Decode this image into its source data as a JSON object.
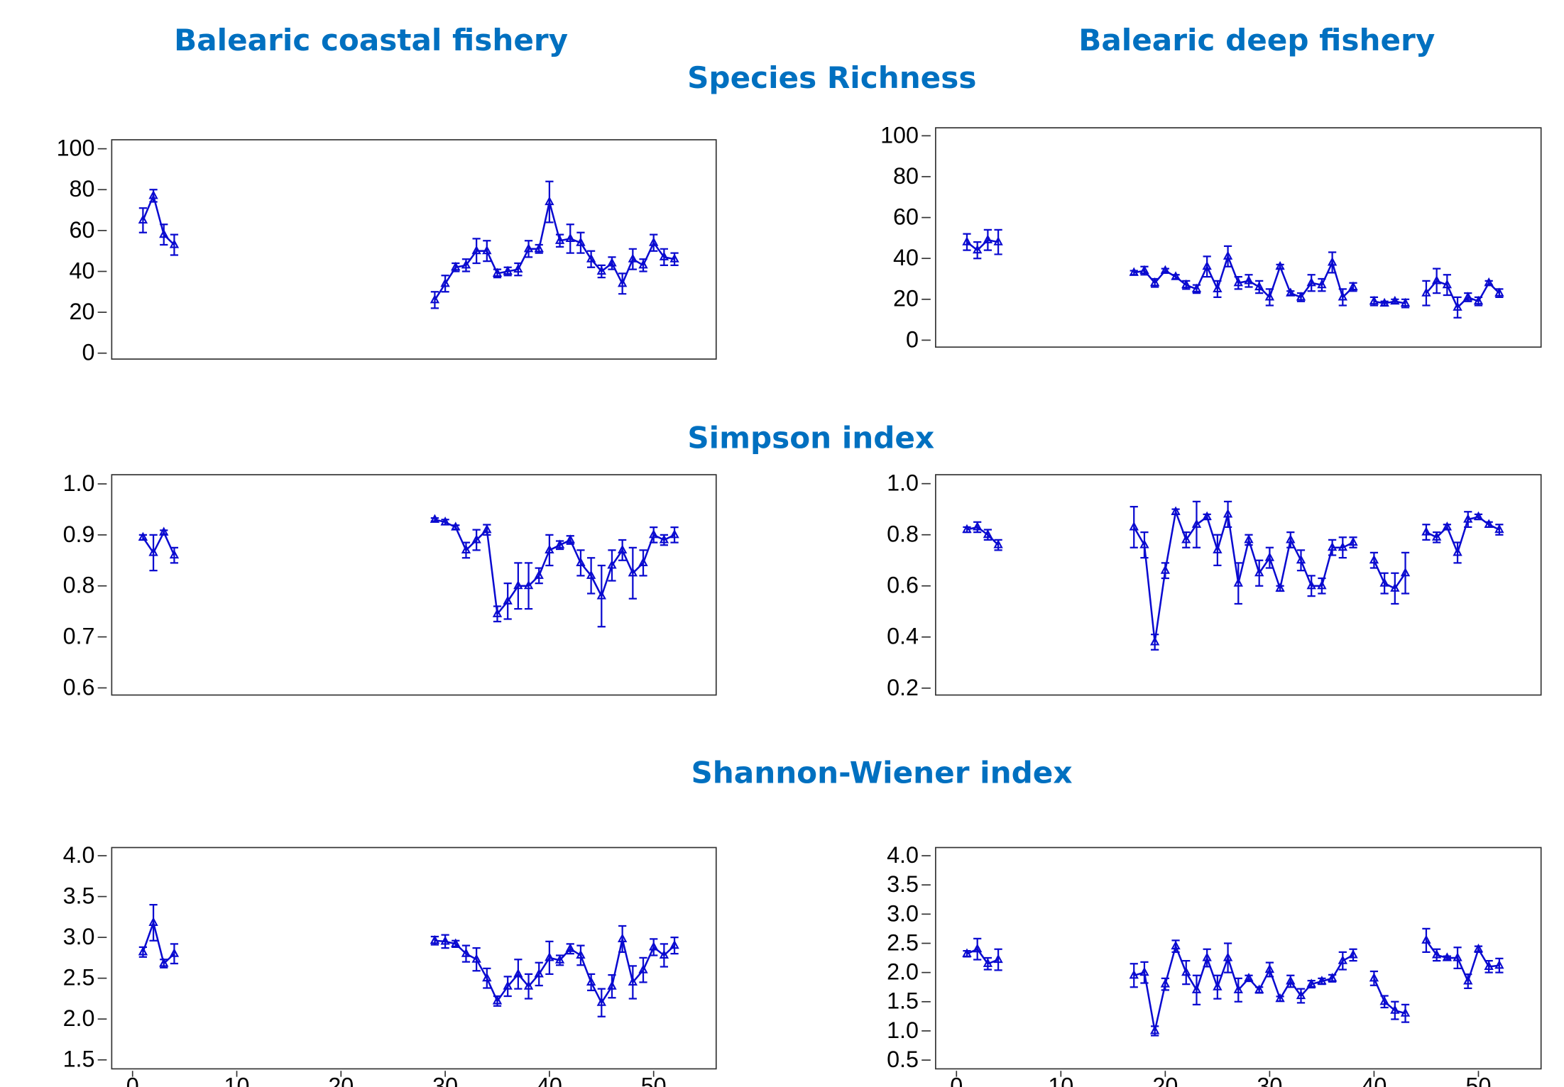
{
  "column_titles": [
    "Balearic coastal fishery",
    "Balearic deep fishery"
  ],
  "row_titles": [
    "Species Richness",
    "Simpson index",
    "Shannon-Wiener index"
  ],
  "chart_data": [
    {
      "type": "line",
      "x": [
        1,
        2,
        3,
        4,
        5,
        6,
        7,
        8,
        9,
        10,
        11,
        12,
        13,
        14,
        15,
        16,
        17,
        18,
        19,
        20,
        21,
        22,
        23,
        24,
        25,
        26,
        27,
        28,
        29,
        30,
        31,
        32,
        33,
        34,
        35,
        36,
        37,
        38,
        39,
        40,
        41,
        42,
        43,
        44,
        45,
        46,
        47,
        48,
        49,
        50,
        51,
        52
      ],
      "series": [
        {
          "color": "#0a0ad0",
          "values": [
            65,
            77,
            58,
            53,
            null,
            null,
            null,
            null,
            null,
            null,
            null,
            null,
            null,
            null,
            null,
            null,
            null,
            null,
            null,
            null,
            null,
            null,
            null,
            null,
            null,
            null,
            null,
            null,
            26,
            34,
            42,
            43,
            50,
            50,
            39,
            40,
            41,
            51,
            51,
            74,
            55,
            56,
            54,
            46,
            40,
            44,
            34,
            46,
            43,
            54,
            47,
            46
          ],
          "errors": [
            6,
            3,
            5,
            5,
            null,
            null,
            null,
            null,
            null,
            null,
            null,
            null,
            null,
            null,
            null,
            null,
            null,
            null,
            null,
            null,
            null,
            null,
            null,
            null,
            null,
            null,
            null,
            null,
            4,
            4,
            2,
            3,
            6,
            5,
            2,
            2,
            3,
            4,
            2,
            10,
            3,
            7,
            5,
            4,
            3,
            3,
            5,
            5,
            3,
            4,
            4,
            3
          ]
        }
      ],
      "xlim": [
        -2,
        56
      ],
      "ylim": [
        -2.9,
        104.4
      ],
      "yticks": [
        0,
        20,
        40,
        60,
        80,
        100
      ]
    },
    {
      "type": "line",
      "x": [
        1,
        2,
        3,
        4,
        5,
        6,
        7,
        8,
        9,
        10,
        11,
        12,
        13,
        14,
        15,
        16,
        17,
        18,
        19,
        20,
        21,
        22,
        23,
        24,
        25,
        26,
        27,
        28,
        29,
        30,
        31,
        32,
        33,
        34,
        35,
        36,
        37,
        38,
        39,
        40,
        41,
        42,
        43,
        44,
        45,
        46,
        47,
        48,
        49,
        50,
        51,
        52
      ],
      "series": [
        {
          "color": "#0a0ad0",
          "values": [
            48,
            44,
            49,
            48,
            null,
            null,
            null,
            null,
            null,
            null,
            null,
            null,
            null,
            null,
            null,
            null,
            33,
            34,
            28,
            34,
            31,
            27,
            25,
            36,
            25,
            41,
            28,
            29,
            26,
            21,
            36,
            23,
            21,
            28,
            27,
            38,
            21,
            26,
            null,
            19,
            18,
            19,
            18,
            null,
            23,
            29,
            27,
            16,
            21,
            19,
            28,
            23
          ],
          "errors": [
            4,
            4,
            5,
            6,
            null,
            null,
            null,
            null,
            null,
            null,
            null,
            null,
            null,
            null,
            null,
            null,
            1,
            2,
            2,
            1,
            1,
            2,
            2,
            5,
            4,
            5,
            3,
            3,
            3,
            4,
            1,
            1,
            2,
            4,
            3,
            5,
            4,
            2,
            null,
            2,
            1,
            1,
            2,
            null,
            6,
            6,
            5,
            5,
            2,
            2,
            1,
            2
          ]
        }
      ],
      "xlim": [
        -2,
        56
      ],
      "ylim": [
        -3.4,
        103.9
      ],
      "yticks": [
        0,
        20,
        40,
        60,
        80,
        100
      ]
    },
    {
      "type": "line",
      "x": [
        1,
        2,
        3,
        4,
        5,
        6,
        7,
        8,
        9,
        10,
        11,
        12,
        13,
        14,
        15,
        16,
        17,
        18,
        19,
        20,
        21,
        22,
        23,
        24,
        25,
        26,
        27,
        28,
        29,
        30,
        31,
        32,
        33,
        34,
        35,
        36,
        37,
        38,
        39,
        40,
        41,
        42,
        43,
        44,
        45,
        46,
        47,
        48,
        49,
        50,
        51,
        52
      ],
      "series": [
        {
          "color": "#0a0ad0",
          "values": [
            0.895,
            0.865,
            0.905,
            0.86,
            null,
            null,
            null,
            null,
            null,
            null,
            null,
            null,
            null,
            null,
            null,
            null,
            null,
            null,
            null,
            null,
            null,
            null,
            null,
            null,
            null,
            null,
            null,
            null,
            0.93,
            0.925,
            0.915,
            0.87,
            0.89,
            0.91,
            0.745,
            0.77,
            0.8,
            0.8,
            0.82,
            0.87,
            0.88,
            0.89,
            0.845,
            0.82,
            0.78,
            0.84,
            0.87,
            0.825,
            0.845,
            0.9,
            0.89,
            0.9
          ],
          "errors": [
            0.005,
            0.035,
            0.004,
            0.015,
            null,
            null,
            null,
            null,
            null,
            null,
            null,
            null,
            null,
            null,
            null,
            null,
            null,
            null,
            null,
            null,
            null,
            null,
            null,
            null,
            null,
            null,
            null,
            null,
            0.003,
            0.005,
            0.004,
            0.015,
            0.02,
            0.01,
            0.015,
            0.035,
            0.045,
            0.045,
            0.015,
            0.03,
            0.008,
            0.008,
            0.025,
            0.035,
            0.06,
            0.03,
            0.02,
            0.05,
            0.025,
            0.015,
            0.01,
            0.015
          ]
        }
      ],
      "xlim": [
        -2,
        56
      ],
      "ylim": [
        0.586,
        1.018
      ],
      "yticks": [
        0.6,
        0.7,
        0.8,
        0.9,
        {
          "value": 1,
          "label": "1.0"
        }
      ]
    },
    {
      "type": "line",
      "x": [
        1,
        2,
        3,
        4,
        5,
        6,
        7,
        8,
        9,
        10,
        11,
        12,
        13,
        14,
        15,
        16,
        17,
        18,
        19,
        20,
        21,
        22,
        23,
        24,
        25,
        26,
        27,
        28,
        29,
        30,
        31,
        32,
        33,
        34,
        35,
        36,
        37,
        38,
        39,
        40,
        41,
        42,
        43,
        44,
        45,
        46,
        47,
        48,
        49,
        50,
        51,
        52
      ],
      "series": [
        {
          "color": "#0a0ad0",
          "values": [
            0.82,
            0.83,
            0.8,
            0.76,
            null,
            null,
            null,
            null,
            null,
            null,
            null,
            null,
            null,
            null,
            null,
            null,
            0.83,
            0.76,
            0.38,
            0.66,
            0.89,
            0.78,
            0.84,
            0.87,
            0.74,
            0.88,
            0.61,
            0.78,
            0.65,
            0.71,
            0.59,
            0.78,
            0.7,
            0.6,
            0.6,
            0.75,
            0.75,
            0.77,
            null,
            0.7,
            0.61,
            0.59,
            0.65,
            null,
            0.81,
            0.79,
            0.83,
            0.73,
            0.86,
            0.87,
            0.84,
            0.82
          ],
          "errors": [
            0.01,
            0.02,
            0.02,
            0.02,
            null,
            null,
            null,
            null,
            null,
            null,
            null,
            null,
            null,
            null,
            null,
            null,
            0.08,
            0.05,
            0.03,
            0.03,
            0.01,
            0.03,
            0.09,
            0.01,
            0.06,
            0.05,
            0.08,
            0.02,
            0.05,
            0.04,
            0.01,
            0.03,
            0.04,
            0.04,
            0.03,
            0.03,
            0.04,
            0.02,
            null,
            0.03,
            0.04,
            0.06,
            0.08,
            null,
            0.03,
            0.02,
            0.01,
            0.04,
            0.03,
            0.01,
            0.01,
            0.02
          ]
        }
      ],
      "xlim": [
        -2,
        56
      ],
      "ylim": [
        0.173,
        1.035
      ],
      "yticks": [
        0.2,
        0.4,
        0.6,
        0.8,
        {
          "value": 1,
          "label": "1.0"
        }
      ]
    },
    {
      "type": "line",
      "x": [
        1,
        2,
        3,
        4,
        5,
        6,
        7,
        8,
        9,
        10,
        11,
        12,
        13,
        14,
        15,
        16,
        17,
        18,
        19,
        20,
        21,
        22,
        23,
        24,
        25,
        26,
        27,
        28,
        29,
        30,
        31,
        32,
        33,
        34,
        35,
        36,
        37,
        38,
        39,
        40,
        41,
        42,
        43,
        44,
        45,
        46,
        47,
        48,
        49,
        50,
        51,
        52
      ],
      "series": [
        {
          "color": "#0a0ad0",
          "values": [
            2.82,
            3.18,
            2.68,
            2.8,
            null,
            null,
            null,
            null,
            null,
            null,
            null,
            null,
            null,
            null,
            null,
            null,
            null,
            null,
            null,
            null,
            null,
            null,
            null,
            null,
            null,
            null,
            null,
            null,
            2.96,
            2.95,
            2.92,
            2.8,
            2.73,
            2.5,
            2.22,
            2.4,
            2.55,
            2.4,
            2.55,
            2.75,
            2.72,
            2.86,
            2.78,
            2.45,
            2.2,
            2.4,
            2.98,
            2.45,
            2.6,
            2.88,
            2.78,
            2.9
          ],
          "errors": [
            0.06,
            0.22,
            0.05,
            0.12,
            null,
            null,
            null,
            null,
            null,
            null,
            null,
            null,
            null,
            null,
            null,
            null,
            null,
            null,
            null,
            null,
            null,
            null,
            null,
            null,
            null,
            null,
            null,
            null,
            0.05,
            0.08,
            0.04,
            0.1,
            0.14,
            0.12,
            0.06,
            0.12,
            0.18,
            0.15,
            0.14,
            0.2,
            0.06,
            0.06,
            0.12,
            0.1,
            0.17,
            0.14,
            0.16,
            0.2,
            0.15,
            0.1,
            0.14,
            0.1
          ]
        }
      ],
      "xlim": [
        -2,
        56
      ],
      "ylim": [
        1.39,
        4.1
      ],
      "xticks": [
        0,
        10,
        20,
        30,
        40,
        50
      ],
      "yticks": [
        1.5,
        {
          "value": 2,
          "label": "2.0"
        },
        2.5,
        {
          "value": 3,
          "label": "3.0"
        },
        3.5,
        {
          "value": 4,
          "label": "4.0"
        }
      ]
    },
    {
      "type": "line",
      "x": [
        1,
        2,
        3,
        4,
        5,
        6,
        7,
        8,
        9,
        10,
        11,
        12,
        13,
        14,
        15,
        16,
        17,
        18,
        19,
        20,
        21,
        22,
        23,
        24,
        25,
        26,
        27,
        28,
        29,
        30,
        31,
        32,
        33,
        34,
        35,
        36,
        37,
        38,
        39,
        40,
        41,
        42,
        43,
        44,
        45,
        46,
        47,
        48,
        49,
        50,
        51,
        52
      ],
      "series": [
        {
          "color": "#0a0ad0",
          "values": [
            2.32,
            2.4,
            2.15,
            2.22,
            null,
            null,
            null,
            null,
            null,
            null,
            null,
            null,
            null,
            null,
            null,
            null,
            1.95,
            2.0,
            1.0,
            1.8,
            2.45,
            2.0,
            1.7,
            2.25,
            1.75,
            2.25,
            1.7,
            1.9,
            1.7,
            2.05,
            1.55,
            1.85,
            1.6,
            1.8,
            1.85,
            1.9,
            2.2,
            2.3,
            null,
            1.9,
            1.5,
            1.35,
            1.3,
            null,
            2.55,
            2.3,
            2.25,
            2.25,
            1.85,
            2.4,
            2.1,
            2.12
          ],
          "errors": [
            0.05,
            0.18,
            0.1,
            0.18,
            null,
            null,
            null,
            null,
            null,
            null,
            null,
            null,
            null,
            null,
            null,
            null,
            0.2,
            0.18,
            0.08,
            0.1,
            0.1,
            0.2,
            0.25,
            0.15,
            0.2,
            0.25,
            0.2,
            0.05,
            0.05,
            0.12,
            0.04,
            0.1,
            0.12,
            0.06,
            0.05,
            0.06,
            0.15,
            0.1,
            null,
            0.12,
            0.1,
            0.15,
            0.15,
            null,
            0.2,
            0.1,
            0.03,
            0.18,
            0.12,
            0.05,
            0.1,
            0.12
          ]
        }
      ],
      "xlim": [
        -2,
        56
      ],
      "ylim": [
        0.35,
        4.14
      ],
      "xticks": [
        0,
        10,
        20,
        30,
        40,
        50
      ],
      "yticks": [
        0.5,
        {
          "value": 1,
          "label": "1.0"
        },
        1.5,
        {
          "value": 2,
          "label": "2.0"
        },
        2.5,
        {
          "value": 3,
          "label": "3.0"
        },
        3.5,
        {
          "value": 4,
          "label": "4.0"
        }
      ]
    }
  ]
}
